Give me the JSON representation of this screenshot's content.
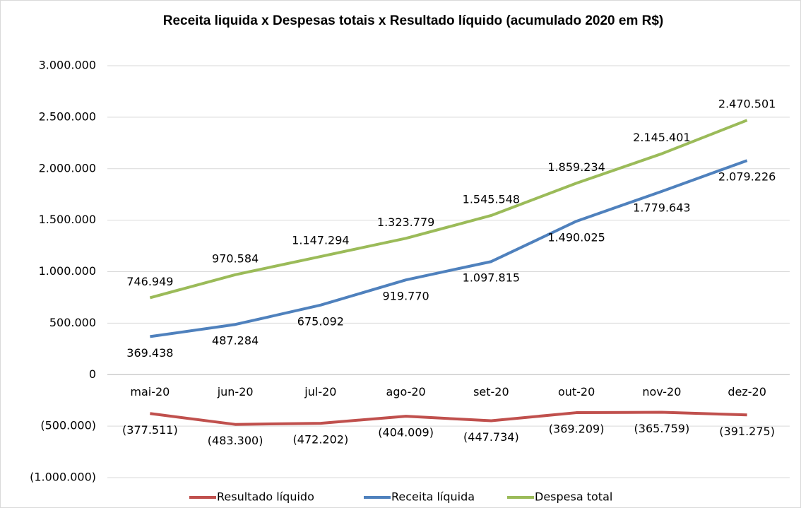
{
  "chart_data": {
    "type": "line",
    "title": "Receita liquida x Despesas totais x Resultado líquido (acumulado 2020 em R$)",
    "categories": [
      "mai-20",
      "jun-20",
      "jul-20",
      "ago-20",
      "set-20",
      "out-20",
      "nov-20",
      "dez-20"
    ],
    "series": [
      {
        "name": "Resultado líquido",
        "color": "#c0504d",
        "values": [
          -377511,
          -483300,
          -472202,
          -404009,
          -447734,
          -369209,
          -365759,
          -391275
        ],
        "value_labels": [
          "(377.511)",
          "(483.300)",
          "(472.202)",
          "(404.009)",
          "(447.734)",
          "(369.209)",
          "(365.759)",
          "(391.275)"
        ]
      },
      {
        "name": "Receita líquida",
        "color": "#4f81bd",
        "values": [
          369438,
          487284,
          675092,
          919770,
          1097815,
          1490025,
          1779643,
          2079226
        ],
        "value_labels": [
          "369.438",
          "487.284",
          "675.092",
          "919.770",
          "1.097.815",
          "1.490.025",
          "1.779.643",
          "2.079.226"
        ]
      },
      {
        "name": "Despesa total",
        "color": "#9bbb59",
        "values": [
          746949,
          970584,
          1147294,
          1323779,
          1545548,
          1859234,
          2145401,
          2470501
        ],
        "value_labels": [
          "746.949",
          "970.584",
          "1.147.294",
          "1.323.779",
          "1.545.548",
          "1.859.234",
          "2.145.401",
          "2.470.501"
        ]
      }
    ],
    "ylim": [
      -1000000,
      3000000
    ],
    "yticks": [
      {
        "value": -1000000,
        "label": "(1.000.000)"
      },
      {
        "value": -500000,
        "label": "(500.000)"
      },
      0,
      {
        "value": 500000,
        "label": "500.000"
      },
      {
        "value": 1000000,
        "label": "1.000.000"
      },
      {
        "value": 1500000,
        "label": "1.500.000"
      },
      {
        "value": 2000000,
        "label": "2.000.000"
      },
      {
        "value": 2500000,
        "label": "2.500.000"
      },
      {
        "value": 3000000,
        "label": "3.000.000"
      }
    ],
    "grid": true,
    "legend": "bottom"
  }
}
